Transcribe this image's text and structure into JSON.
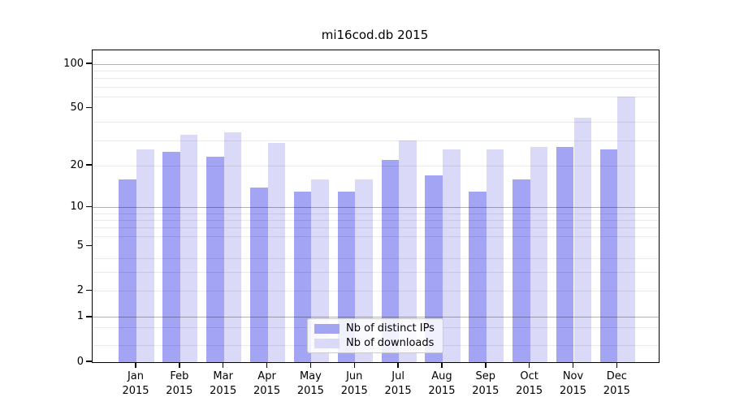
{
  "chart_data": {
    "type": "bar",
    "title": "mi16cod.db 2015",
    "year_label": "2015",
    "categories": [
      "Jan",
      "Feb",
      "Mar",
      "Apr",
      "May",
      "Jun",
      "Jul",
      "Aug",
      "Sep",
      "Oct",
      "Nov",
      "Dec"
    ],
    "series": [
      {
        "name": "Nb of distinct IPs",
        "color": "#a4a4f4",
        "values": [
          16,
          25,
          23,
          14,
          13,
          13,
          22,
          17,
          13,
          16,
          27,
          26
        ]
      },
      {
        "name": "Nb of downloads",
        "color": "#dadaf8",
        "values": [
          26,
          33,
          34,
          29,
          16,
          16,
          30,
          26,
          26,
          27,
          43,
          60
        ]
      }
    ],
    "xlabel": "",
    "ylabel": "",
    "y_axis": {
      "scale": "log(1+v)",
      "tick_values": [
        0,
        1,
        2,
        5,
        10,
        20,
        50,
        100
      ],
      "tick_labels": [
        "0",
        "1",
        "2",
        "5",
        "10",
        "20",
        "50",
        "100"
      ],
      "major_gridlines": [
        1,
        10,
        100
      ],
      "minor_gridlines": [
        0.3,
        0.7,
        2,
        3,
        4,
        6,
        7,
        8,
        9,
        20,
        30,
        40,
        60,
        70,
        80,
        90
      ],
      "ylim": [
        0,
        121
      ]
    },
    "legend": {
      "position": "lower center inside plot",
      "entries": [
        "Nb of distinct IPs",
        "Nb of downloads"
      ]
    },
    "grid": "on"
  }
}
